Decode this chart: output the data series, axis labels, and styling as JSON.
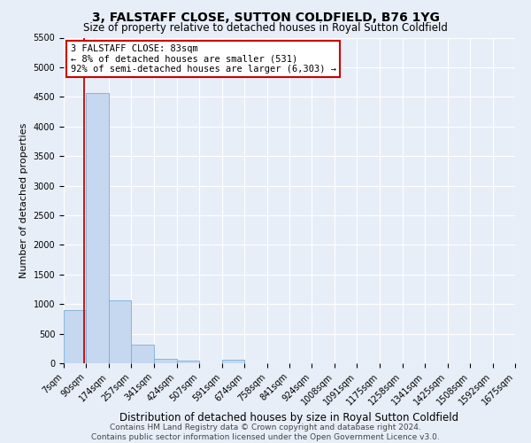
{
  "title": "3, FALSTAFF CLOSE, SUTTON COLDFIELD, B76 1YG",
  "subtitle": "Size of property relative to detached houses in Royal Sutton Coldfield",
  "xlabel": "Distribution of detached houses by size in Royal Sutton Coldfield",
  "ylabel": "Number of detached properties",
  "footer_line1": "Contains HM Land Registry data © Crown copyright and database right 2024.",
  "footer_line2": "Contains public sector information licensed under the Open Government Licence v3.0.",
  "bar_values": [
    900,
    4560,
    1060,
    310,
    80,
    50,
    0,
    55,
    0,
    0,
    0,
    0,
    0,
    0,
    0,
    0,
    0,
    0,
    0,
    0
  ],
  "bin_edges": [
    7,
    90,
    174,
    257,
    341,
    424,
    507,
    591,
    674,
    758,
    841,
    924,
    1008,
    1091,
    1175,
    1258,
    1341,
    1425,
    1508,
    1592,
    1675
  ],
  "xtick_labels": [
    "7sqm",
    "90sqm",
    "174sqm",
    "257sqm",
    "341sqm",
    "424sqm",
    "507sqm",
    "591sqm",
    "674sqm",
    "758sqm",
    "841sqm",
    "924sqm",
    "1008sqm",
    "1091sqm",
    "1175sqm",
    "1258sqm",
    "1341sqm",
    "1425sqm",
    "1508sqm",
    "1592sqm",
    "1675sqm"
  ],
  "bar_color": "#c5d8f0",
  "bar_edge_color": "#7aaed4",
  "ylim_max": 5500,
  "yticks": [
    0,
    500,
    1000,
    1500,
    2000,
    2500,
    3000,
    3500,
    4000,
    4500,
    5000,
    5500
  ],
  "property_size": 83,
  "vline_color": "#cc0000",
  "annotation_line1": "3 FALSTAFF CLOSE: 83sqm",
  "annotation_line2": "← 8% of detached houses are smaller (531)",
  "annotation_line3": "92% of semi-detached houses are larger (6,303) →",
  "annotation_box_facecolor": "#ffffff",
  "annotation_box_edgecolor": "#cc0000",
  "bg_color": "#e8eef8",
  "grid_color": "#ffffff",
  "title_fontsize": 10,
  "subtitle_fontsize": 8.5,
  "ylabel_fontsize": 8,
  "xlabel_fontsize": 8.5,
  "tick_fontsize": 7,
  "annotation_fontsize": 7.5,
  "footer_fontsize": 6.5
}
